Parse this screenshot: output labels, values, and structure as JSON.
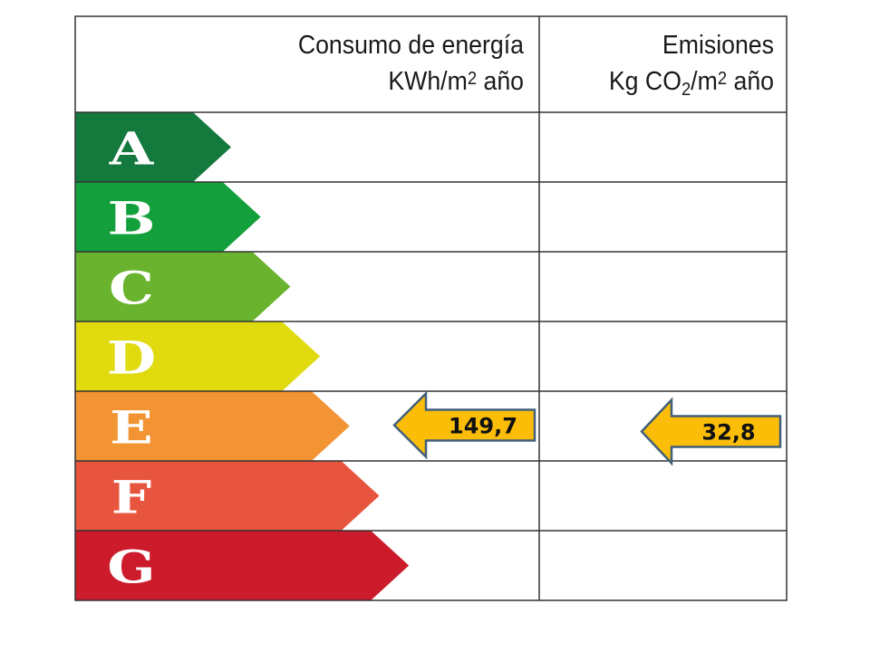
{
  "header": {
    "consumption_title": "Consumo de energía",
    "consumption_unit_pre": "KWh/m",
    "consumption_unit_sup": "2",
    "consumption_unit_post": " año",
    "emissions_title": "Emisiones",
    "emissions_unit_pre": "Kg CO",
    "emissions_unit_sub": "2",
    "emissions_unit_mid": "/m",
    "emissions_unit_sup": "2",
    "emissions_unit_post": " año"
  },
  "classes": [
    {
      "letter": "A",
      "color": "#13793d"
    },
    {
      "letter": "B",
      "color": "#139f3c"
    },
    {
      "letter": "C",
      "color": "#69b32e"
    },
    {
      "letter": "D",
      "color": "#e0da0f"
    },
    {
      "letter": "E",
      "color": "#f29433"
    },
    {
      "letter": "F",
      "color": "#e8553f"
    },
    {
      "letter": "G",
      "color": "#cc1b2b"
    }
  ],
  "rating": {
    "class": "E",
    "consumption_value": "149,7",
    "emissions_value": "32,8",
    "arrow_color": "#fbbd08",
    "arrow_border": "#41607a"
  }
}
